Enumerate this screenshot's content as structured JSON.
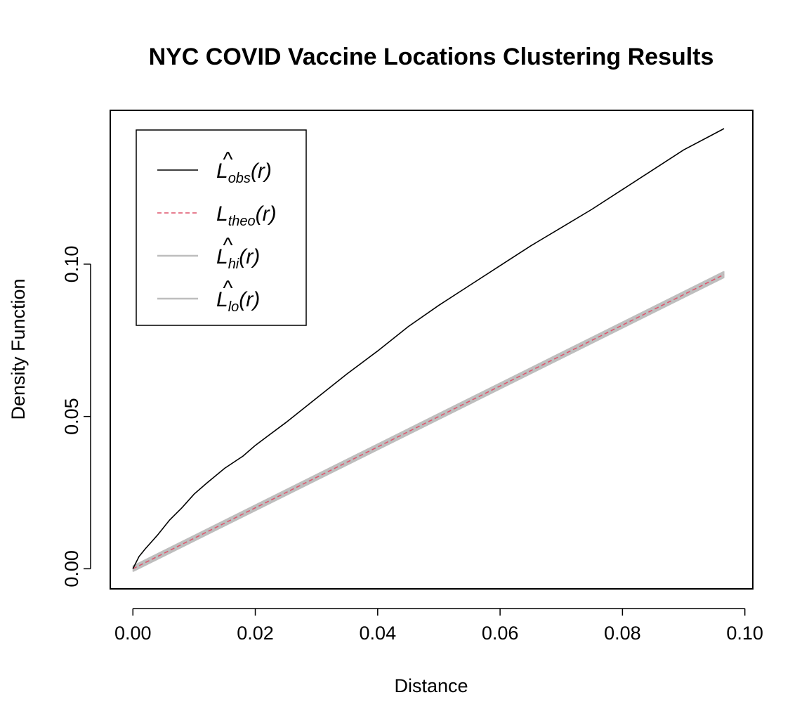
{
  "chart_data": {
    "type": "line",
    "title": "NYC COVID Vaccine Locations Clustering Results",
    "xlabel": "Distance",
    "ylabel": "Density Function",
    "xlim": [
      -0.0037,
      0.1013
    ],
    "ylim": [
      -0.0066,
      0.1505
    ],
    "x_ticks": [
      0.0,
      0.02,
      0.04,
      0.06,
      0.08,
      0.1
    ],
    "x_tick_labels": [
      "0.00",
      "0.02",
      "0.04",
      "0.06",
      "0.08",
      "0.10"
    ],
    "y_ticks": [
      0.0,
      0.05,
      0.1
    ],
    "y_tick_labels": [
      "0.00",
      "0.05",
      "0.10"
    ],
    "grid": false,
    "legend_position": "top-left",
    "band": {
      "color": "#bebebe",
      "x": [
        0,
        0.0966
      ],
      "lo": [
        -0.0008,
        0.0957
      ],
      "hi": [
        0.0008,
        0.0975
      ]
    },
    "series": [
      {
        "name": "obs",
        "color": "#000000",
        "style": "solid",
        "x": [
          0,
          0.001,
          0.002,
          0.004,
          0.006,
          0.008,
          0.01,
          0.012,
          0.015,
          0.018,
          0.02,
          0.025,
          0.03,
          0.035,
          0.04,
          0.045,
          0.05,
          0.055,
          0.06,
          0.065,
          0.07,
          0.075,
          0.08,
          0.085,
          0.09,
          0.0966
        ],
        "y": [
          0,
          0.004,
          0.0065,
          0.011,
          0.016,
          0.02,
          0.0245,
          0.028,
          0.033,
          0.037,
          0.0405,
          0.048,
          0.056,
          0.064,
          0.0715,
          0.0795,
          0.0865,
          0.093,
          0.0995,
          0.106,
          0.112,
          0.118,
          0.1245,
          0.131,
          0.1375,
          0.1445
        ]
      },
      {
        "name": "theo",
        "color": "#df536b",
        "style": "dashed",
        "x": [
          0,
          0.0966
        ],
        "y": [
          0,
          0.0966
        ]
      },
      {
        "name": "hi",
        "color": "#bebebe",
        "style": "solid",
        "x": [
          0,
          0.0966
        ],
        "y": [
          0.0008,
          0.0975
        ]
      },
      {
        "name": "lo",
        "color": "#bebebe",
        "style": "solid",
        "x": [
          0,
          0.0966
        ],
        "y": [
          -0.0008,
          0.0957
        ]
      }
    ],
    "legend": [
      {
        "base": "L",
        "hat": true,
        "sub": "obs",
        "suffix": "(r)",
        "color": "#000000",
        "style": "solid"
      },
      {
        "base": "L",
        "hat": false,
        "sub": "theo",
        "suffix": "(r)",
        "color": "#df536b",
        "style": "dashed"
      },
      {
        "base": "L",
        "hat": true,
        "sub": "hi",
        "suffix": "(r)",
        "color": "#bebebe",
        "style": "solid"
      },
      {
        "base": "L",
        "hat": true,
        "sub": "lo",
        "suffix": "(r)",
        "color": "#bebebe",
        "style": "solid"
      }
    ]
  }
}
